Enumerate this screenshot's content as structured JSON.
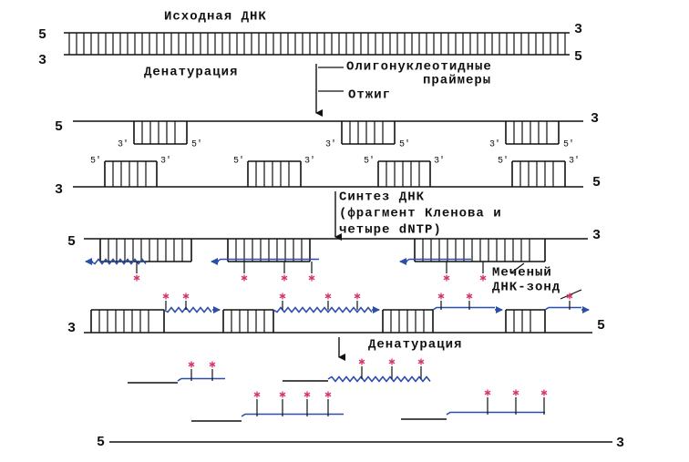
{
  "title": "Исходная ДНК",
  "original_dna": {
    "top_left": "5",
    "top_right": "3",
    "bottom_left": "3",
    "bottom_right": "5"
  },
  "denaturation_1": "Денатурация",
  "primers_label": [
    "Олигонуклеотидные",
    "праймеры"
  ],
  "annealing": "Отжиг",
  "annealed": {
    "top_left": "5",
    "top_right": "3",
    "bottom_left": "3",
    "bottom_right": "5",
    "top_primers": [
      [
        "3′",
        "5′"
      ],
      [
        "3′",
        "5′"
      ],
      [
        "3′",
        "5′"
      ]
    ],
    "bottom_primers": [
      [
        "5′",
        "3′"
      ],
      [
        "5′",
        "3′"
      ],
      [
        "5′",
        "3′"
      ],
      [
        "5′",
        "3′"
      ]
    ]
  },
  "synthesis": [
    "Синтез ДНК",
    "(фрагмент Кленова и",
    "четыре dNTP)"
  ],
  "synthesized": {
    "top_left": "5",
    "top_right": "3",
    "bottom_left": "3",
    "bottom_right": "5"
  },
  "probe_label": [
    "Меченый",
    "ДНК-зонд"
  ],
  "denaturation_2": "Денатурация",
  "final_strand": {
    "left": "5",
    "right": "3"
  }
}
